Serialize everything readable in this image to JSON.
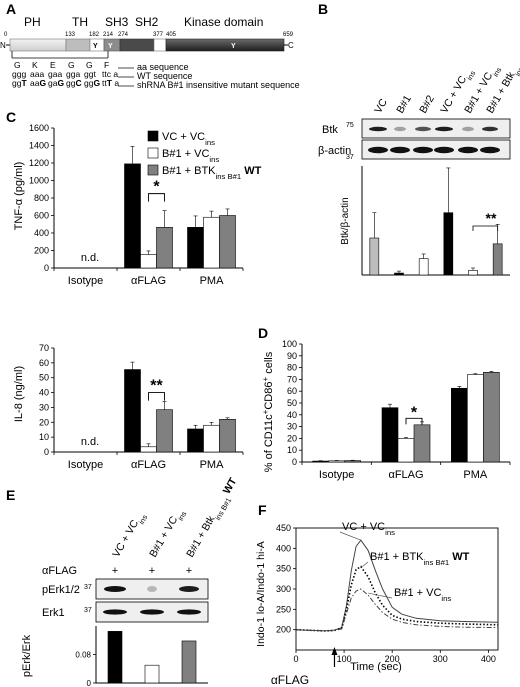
{
  "panel_letters": {
    "a": "A",
    "b": "B",
    "c": "C",
    "d": "D",
    "e": "E",
    "f": "F"
  },
  "panel_a": {
    "domains": {
      "ph": "PH",
      "th": "TH",
      "sh3": "SH3",
      "sh2": "SH2",
      "kinase": "Kinase domain"
    },
    "positions": {
      "start": "0",
      "p133": "133",
      "p182": "182",
      "p214": "214",
      "p274": "274",
      "p377": "377",
      "p405": "405",
      "p659": "659"
    },
    "termini": {
      "n": "N",
      "c": "C"
    },
    "y_mark": "Y",
    "aa_row": [
      "G",
      "K",
      "E",
      "G",
      "G",
      "F"
    ],
    "wt_row": [
      "ggg",
      "aaa",
      "gaa",
      "gga",
      "ggt",
      "ttc a"
    ],
    "mut_row": [
      "ggT",
      "aaG",
      "gaG",
      "ggC",
      "ggG",
      "ttT a"
    ],
    "legend": [
      "aa sequence",
      "WT sequence",
      "shRNA B#1 insensitive mutant sequence"
    ]
  },
  "panel_b": {
    "lanes": [
      "VC",
      "B#1",
      "B#2",
      "VC + VC",
      "B#1 + VC",
      "B#1 + Btk"
    ],
    "lane_subs": [
      "",
      "",
      "",
      "ins",
      "ins",
      "ins B#1"
    ],
    "lane_bold_tail": "WT",
    "blots": [
      "Btk",
      "β-actin"
    ],
    "mw_btk": "75",
    "mw_actin": "37",
    "ylabel": "Btk/β-actin",
    "sig": "**"
  },
  "panel_c": {
    "legend": [
      {
        "main": "VC + VC",
        "sub": "ins",
        "tail": ""
      },
      {
        "main": "B#1 + VC",
        "sub": "ins",
        "tail": ""
      },
      {
        "main": "B#1 + BTK",
        "sub": "ins B#1",
        "tail": " WT"
      }
    ],
    "groups": [
      "Isotype",
      "αFLAG",
      "PMA"
    ],
    "nd": "n.d.",
    "top_ylabel": "TNF-α (pg/ml)",
    "bottom_ylabel": "IL-8 (ng/ml)",
    "top_sig": "*",
    "bottom_sig": "**"
  },
  "panel_d": {
    "ylabel_parts": [
      "% of CD11c",
      "+",
      "CD86",
      "+",
      " cells"
    ],
    "groups": [
      "Isotype",
      "αFLAG",
      "PMA"
    ],
    "sig": "*"
  },
  "panel_e": {
    "row_label": "αFLAG",
    "lanes": [
      "VC + VC",
      "B#1 + VC",
      "B#1 + Btk"
    ],
    "lane_subs": [
      "ins",
      "ins",
      "ins B#1"
    ],
    "lane_bold_tail": "WT",
    "plus": "+",
    "blots": [
      "pErk1/2",
      "Erk1"
    ],
    "mw": "37",
    "ylabel": "pErk/Erk"
  },
  "panel_f": {
    "ylabel": "Indo-1 lo-A/Indo-1 hi-A",
    "xlabel": "Time (sec)",
    "arrow_label": "αFLAG",
    "labels": [
      {
        "main": "VC + VC",
        "sub": "ins",
        "tail": ""
      },
      {
        "main": "B#1 + BTK",
        "sub": "ins B#1",
        "tail": " WT"
      },
      {
        "main": "B#1 + VC",
        "sub": "ins",
        "tail": ""
      }
    ]
  },
  "chart_data": [
    {
      "type": "bar",
      "title": "B",
      "categories": [
        "VC",
        "B#1",
        "B#2",
        "VC + VCins",
        "B#1 + VCins",
        "B#1 + Btkins B#1 WT"
      ],
      "values": [
        0.95,
        0.05,
        0.42,
        1.6,
        0.12,
        0.8
      ],
      "errors": [
        0.65,
        0.05,
        0.12,
        1.15,
        0.06,
        0.5
      ],
      "colors": [
        "#bdbdbd",
        "#000000",
        "#ffffff",
        "#000000",
        "#ffffff",
        "#808080"
      ],
      "ylim": [
        0,
        2.8
      ],
      "ylabel": "Btk/β-actin"
    },
    {
      "type": "bar",
      "title": "C top",
      "categories": [
        "Isotype",
        "αFLAG",
        "PMA"
      ],
      "series": [
        {
          "name": "VC + VCins",
          "values": [
            0,
            1190,
            465
          ],
          "errors": [
            0,
            200,
            130
          ]
        },
        {
          "name": "B#1 + VCins",
          "values": [
            0,
            155,
            580
          ],
          "errors": [
            0,
            40,
            70
          ]
        },
        {
          "name": "B#1 + BTKins B#1 WT",
          "values": [
            0,
            465,
            600
          ],
          "errors": [
            0,
            190,
            75
          ]
        }
      ],
      "ylim": [
        0,
        1600
      ],
      "yticks": [
        0,
        200,
        400,
        600,
        800,
        1000,
        1200,
        1400,
        1600
      ],
      "ylabel": "TNF-α (pg/ml)"
    },
    {
      "type": "bar",
      "title": "C bottom",
      "categories": [
        "Isotype",
        "αFLAG",
        "PMA"
      ],
      "series": [
        {
          "name": "VC + VCins",
          "values": [
            0,
            55.5,
            15.5
          ],
          "errors": [
            0,
            5,
            2.5
          ]
        },
        {
          "name": "B#1 + VCins",
          "values": [
            0,
            3.5,
            18
          ],
          "errors": [
            0,
            2,
            2
          ]
        },
        {
          "name": "B#1 + BTKins B#1 WT",
          "values": [
            0,
            28.5,
            22
          ],
          "errors": [
            0,
            5.5,
            1
          ]
        }
      ],
      "ylim": [
        0,
        70
      ],
      "yticks": [
        0,
        10,
        20,
        30,
        40,
        50,
        60,
        70
      ],
      "ylabel": "IL-8 (ng/ml)"
    },
    {
      "type": "bar",
      "title": "D",
      "categories": [
        "Isotype",
        "αFLAG",
        "PMA"
      ],
      "series": [
        {
          "name": "VC + VCins",
          "values": [
            0.8,
            46,
            62.5
          ],
          "errors": [
            0.3,
            3,
            1.5
          ]
        },
        {
          "name": "B#1 + VCins",
          "values": [
            1,
            20,
            74
          ],
          "errors": [
            0.3,
            0.8,
            0.8
          ]
        },
        {
          "name": "B#1 + BTKins B#1 WT",
          "values": [
            1.2,
            31.5,
            76
          ],
          "errors": [
            0.3,
            2.5,
            0.8
          ]
        }
      ],
      "ylim": [
        0,
        100
      ],
      "yticks": [
        0,
        10,
        20,
        30,
        40,
        50,
        60,
        70,
        80,
        90,
        100
      ],
      "ylabel": "% of CD11c+CD86+ cells"
    },
    {
      "type": "bar",
      "title": "E",
      "categories": [
        "VC + VCins",
        "B#1 + VCins",
        "B#1 + Btkins B#1 WT"
      ],
      "values": [
        0.145,
        0.05,
        0.118
      ],
      "colors": [
        "#000000",
        "#ffffff",
        "#808080"
      ],
      "ylim": [
        0,
        0.16
      ],
      "yticks": [
        0,
        0.08
      ],
      "ylabel": "pErk/Erk"
    },
    {
      "type": "line",
      "title": "F",
      "x": [
        0,
        20,
        40,
        60,
        80,
        95,
        105,
        115,
        125,
        135,
        150,
        165,
        180,
        200,
        220,
        250,
        300,
        350,
        420
      ],
      "series": [
        {
          "name": "VC + VCins",
          "values": [
            200,
            199,
            198,
            197,
            199,
            205,
            260,
            345,
            405,
            420,
            395,
            345,
            300,
            255,
            238,
            228,
            222,
            220,
            218
          ],
          "style": "solid"
        },
        {
          "name": "B#1 + BTKins B#1 WT",
          "values": [
            200,
            199,
            198,
            197,
            198,
            204,
            250,
            310,
            348,
            355,
            330,
            290,
            260,
            235,
            226,
            220,
            216,
            214,
            212
          ],
          "style": "dotted"
        },
        {
          "name": "B#1 + VCins",
          "values": [
            200,
            199,
            198,
            197,
            198,
            202,
            240,
            278,
            295,
            300,
            285,
            262,
            242,
            226,
            218,
            212,
            208,
            206,
            205
          ],
          "style": "dashdot"
        }
      ],
      "xlim": [
        0,
        420
      ],
      "ylim": [
        150,
        450
      ],
      "xticks": [
        0,
        100,
        200,
        300,
        400
      ],
      "yticks": [
        200,
        250,
        300,
        350,
        400,
        450
      ],
      "xlabel": "Time (sec)",
      "ylabel": "Indo-1 lo-A/Indo-1 hi-A"
    }
  ]
}
